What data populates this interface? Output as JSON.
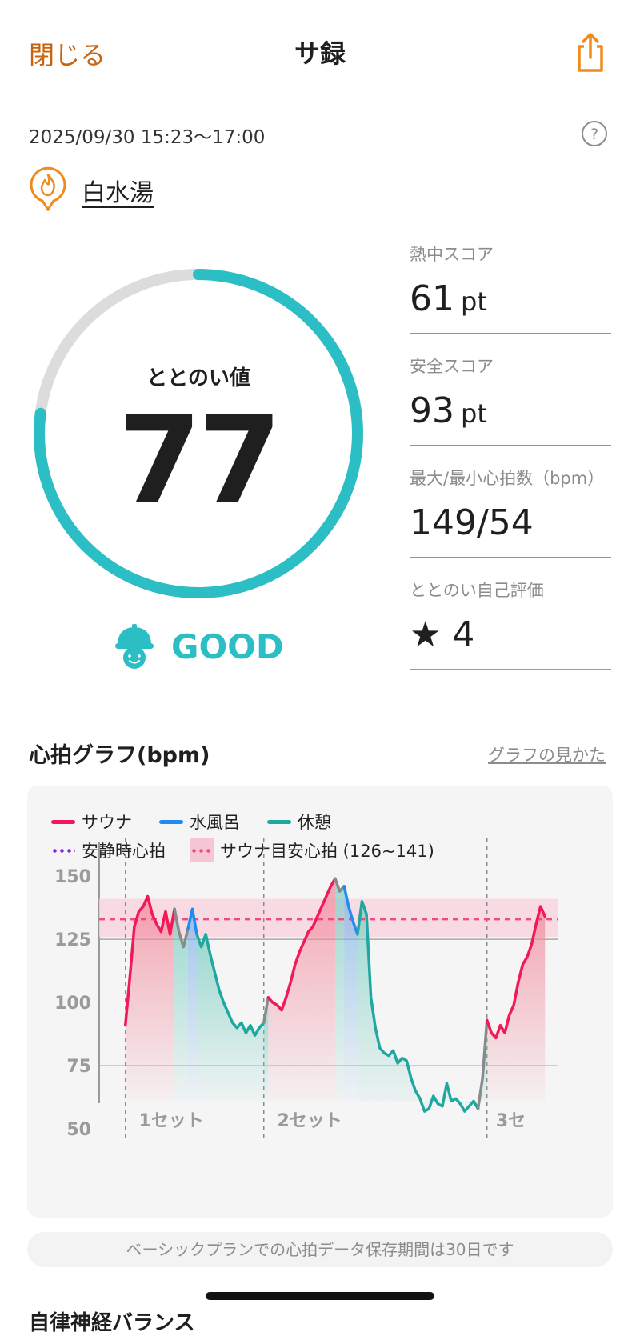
{
  "header": {
    "close_label": "閉じる",
    "title": "サ録",
    "share_icon": "share-icon"
  },
  "session": {
    "datetime": "2025/09/30 15:23～17:00",
    "facility": "白水湯"
  },
  "score": {
    "label": "ととのい値",
    "value": "77",
    "progress": 0.77,
    "rating": "GOOD",
    "ring_color": "#2bbfc5",
    "track_color": "#dcdcdc"
  },
  "stats": [
    {
      "label": "熱中スコア",
      "value": "61",
      "unit": "pt"
    },
    {
      "label": "安全スコア",
      "value": "93",
      "unit": "pt"
    },
    {
      "label": "最大/最小心拍数（bpm）",
      "value": "149/54",
      "unit": ""
    },
    {
      "label": "ととのい自己評価",
      "value": "★ 4",
      "unit": ""
    }
  ],
  "graph": {
    "title": "心拍グラフ(bpm)",
    "help_link": "グラフの見かた"
  },
  "chart_data": {
    "type": "line",
    "legend": [
      {
        "label": "サウナ",
        "color": "#f0195a"
      },
      {
        "label": "水風呂",
        "color": "#1e8cf0"
      },
      {
        "label": "休憩",
        "color": "#1fa7a0"
      },
      {
        "label": "安静時心拍",
        "color": "#8c23e6"
      },
      {
        "label": "サウナ目安心拍 (126~141)",
        "color": "#f04b7d"
      }
    ],
    "yticks": [
      "150",
      "125",
      "100",
      "75",
      "50"
    ],
    "ylim": [
      45,
      151
    ],
    "xlim": [
      0,
      100
    ],
    "target_zone": [
      126,
      141
    ],
    "target_line": 133,
    "reference_lines": [
      125,
      75
    ],
    "set_labels": [
      {
        "label": "1セット",
        "x": 6
      },
      {
        "label": "2セット",
        "x": 37
      },
      {
        "label": "3セ",
        "x": 86
      }
    ],
    "set_dividers": [
      3,
      34,
      84
    ],
    "segments": [
      {
        "phase": "sauna",
        "x": [
          3,
          4,
          5,
          6,
          7,
          8,
          9,
          10,
          11,
          12,
          13,
          14
        ],
        "y": [
          91,
          110,
          130,
          136,
          138,
          142,
          135,
          131,
          128,
          136,
          127,
          137
        ]
      },
      {
        "phase": "rest",
        "x": [
          14,
          15,
          16,
          17
        ],
        "y": [
          137,
          128,
          122,
          129
        ]
      },
      {
        "phase": "water",
        "x": [
          17,
          18,
          19
        ],
        "y": [
          129,
          137,
          127
        ]
      },
      {
        "phase": "rest",
        "x": [
          19,
          20,
          21,
          22,
          23,
          24,
          25,
          26,
          27,
          28,
          29,
          30,
          31,
          32,
          33,
          34
        ],
        "y": [
          127,
          122,
          127,
          119,
          112,
          105,
          100,
          96,
          92,
          90,
          92,
          88,
          91,
          87,
          90,
          92
        ]
      },
      {
        "phase": "rest",
        "x": [
          34,
          35
        ],
        "y": [
          92,
          102
        ]
      },
      {
        "phase": "sauna",
        "x": [
          35,
          36,
          37,
          38,
          39,
          40,
          41,
          42,
          43,
          44,
          45,
          46,
          47,
          48,
          49,
          50
        ],
        "y": [
          102,
          100,
          99,
          97,
          102,
          108,
          115,
          120,
          124,
          128,
          130,
          134,
          138,
          142,
          146,
          149
        ]
      },
      {
        "phase": "rest",
        "x": [
          50,
          51,
          52
        ],
        "y": [
          149,
          144,
          146
        ]
      },
      {
        "phase": "water",
        "x": [
          52,
          53,
          54,
          55
        ],
        "y": [
          146,
          138,
          132,
          127
        ]
      },
      {
        "phase": "rest",
        "x": [
          55,
          56,
          57,
          58,
          59,
          60,
          61,
          62,
          63,
          64,
          65,
          66,
          67,
          68,
          69,
          70,
          71,
          72,
          73,
          74,
          75,
          76,
          77,
          78,
          79,
          80,
          81,
          82
        ],
        "y": [
          127,
          140,
          135,
          102,
          90,
          82,
          80,
          79,
          81,
          76,
          78,
          77,
          70,
          65,
          62,
          57,
          58,
          63,
          60,
          59,
          68,
          61,
          62,
          60,
          57,
          59,
          61,
          58
        ]
      },
      {
        "phase": "rest",
        "x": [
          82,
          83,
          84
        ],
        "y": [
          58,
          70,
          93
        ]
      },
      {
        "phase": "sauna",
        "x": [
          84,
          85,
          86,
          87,
          88,
          89,
          90,
          91,
          92,
          93,
          94,
          95,
          96,
          97
        ],
        "y": [
          93,
          88,
          86,
          91,
          88,
          95,
          99,
          108,
          115,
          118,
          123,
          131,
          138,
          134
        ]
      }
    ]
  },
  "notice": "ベーシックプランでの心拍データ保存期間は30日です",
  "next_section_partial": "自律神経バランス"
}
